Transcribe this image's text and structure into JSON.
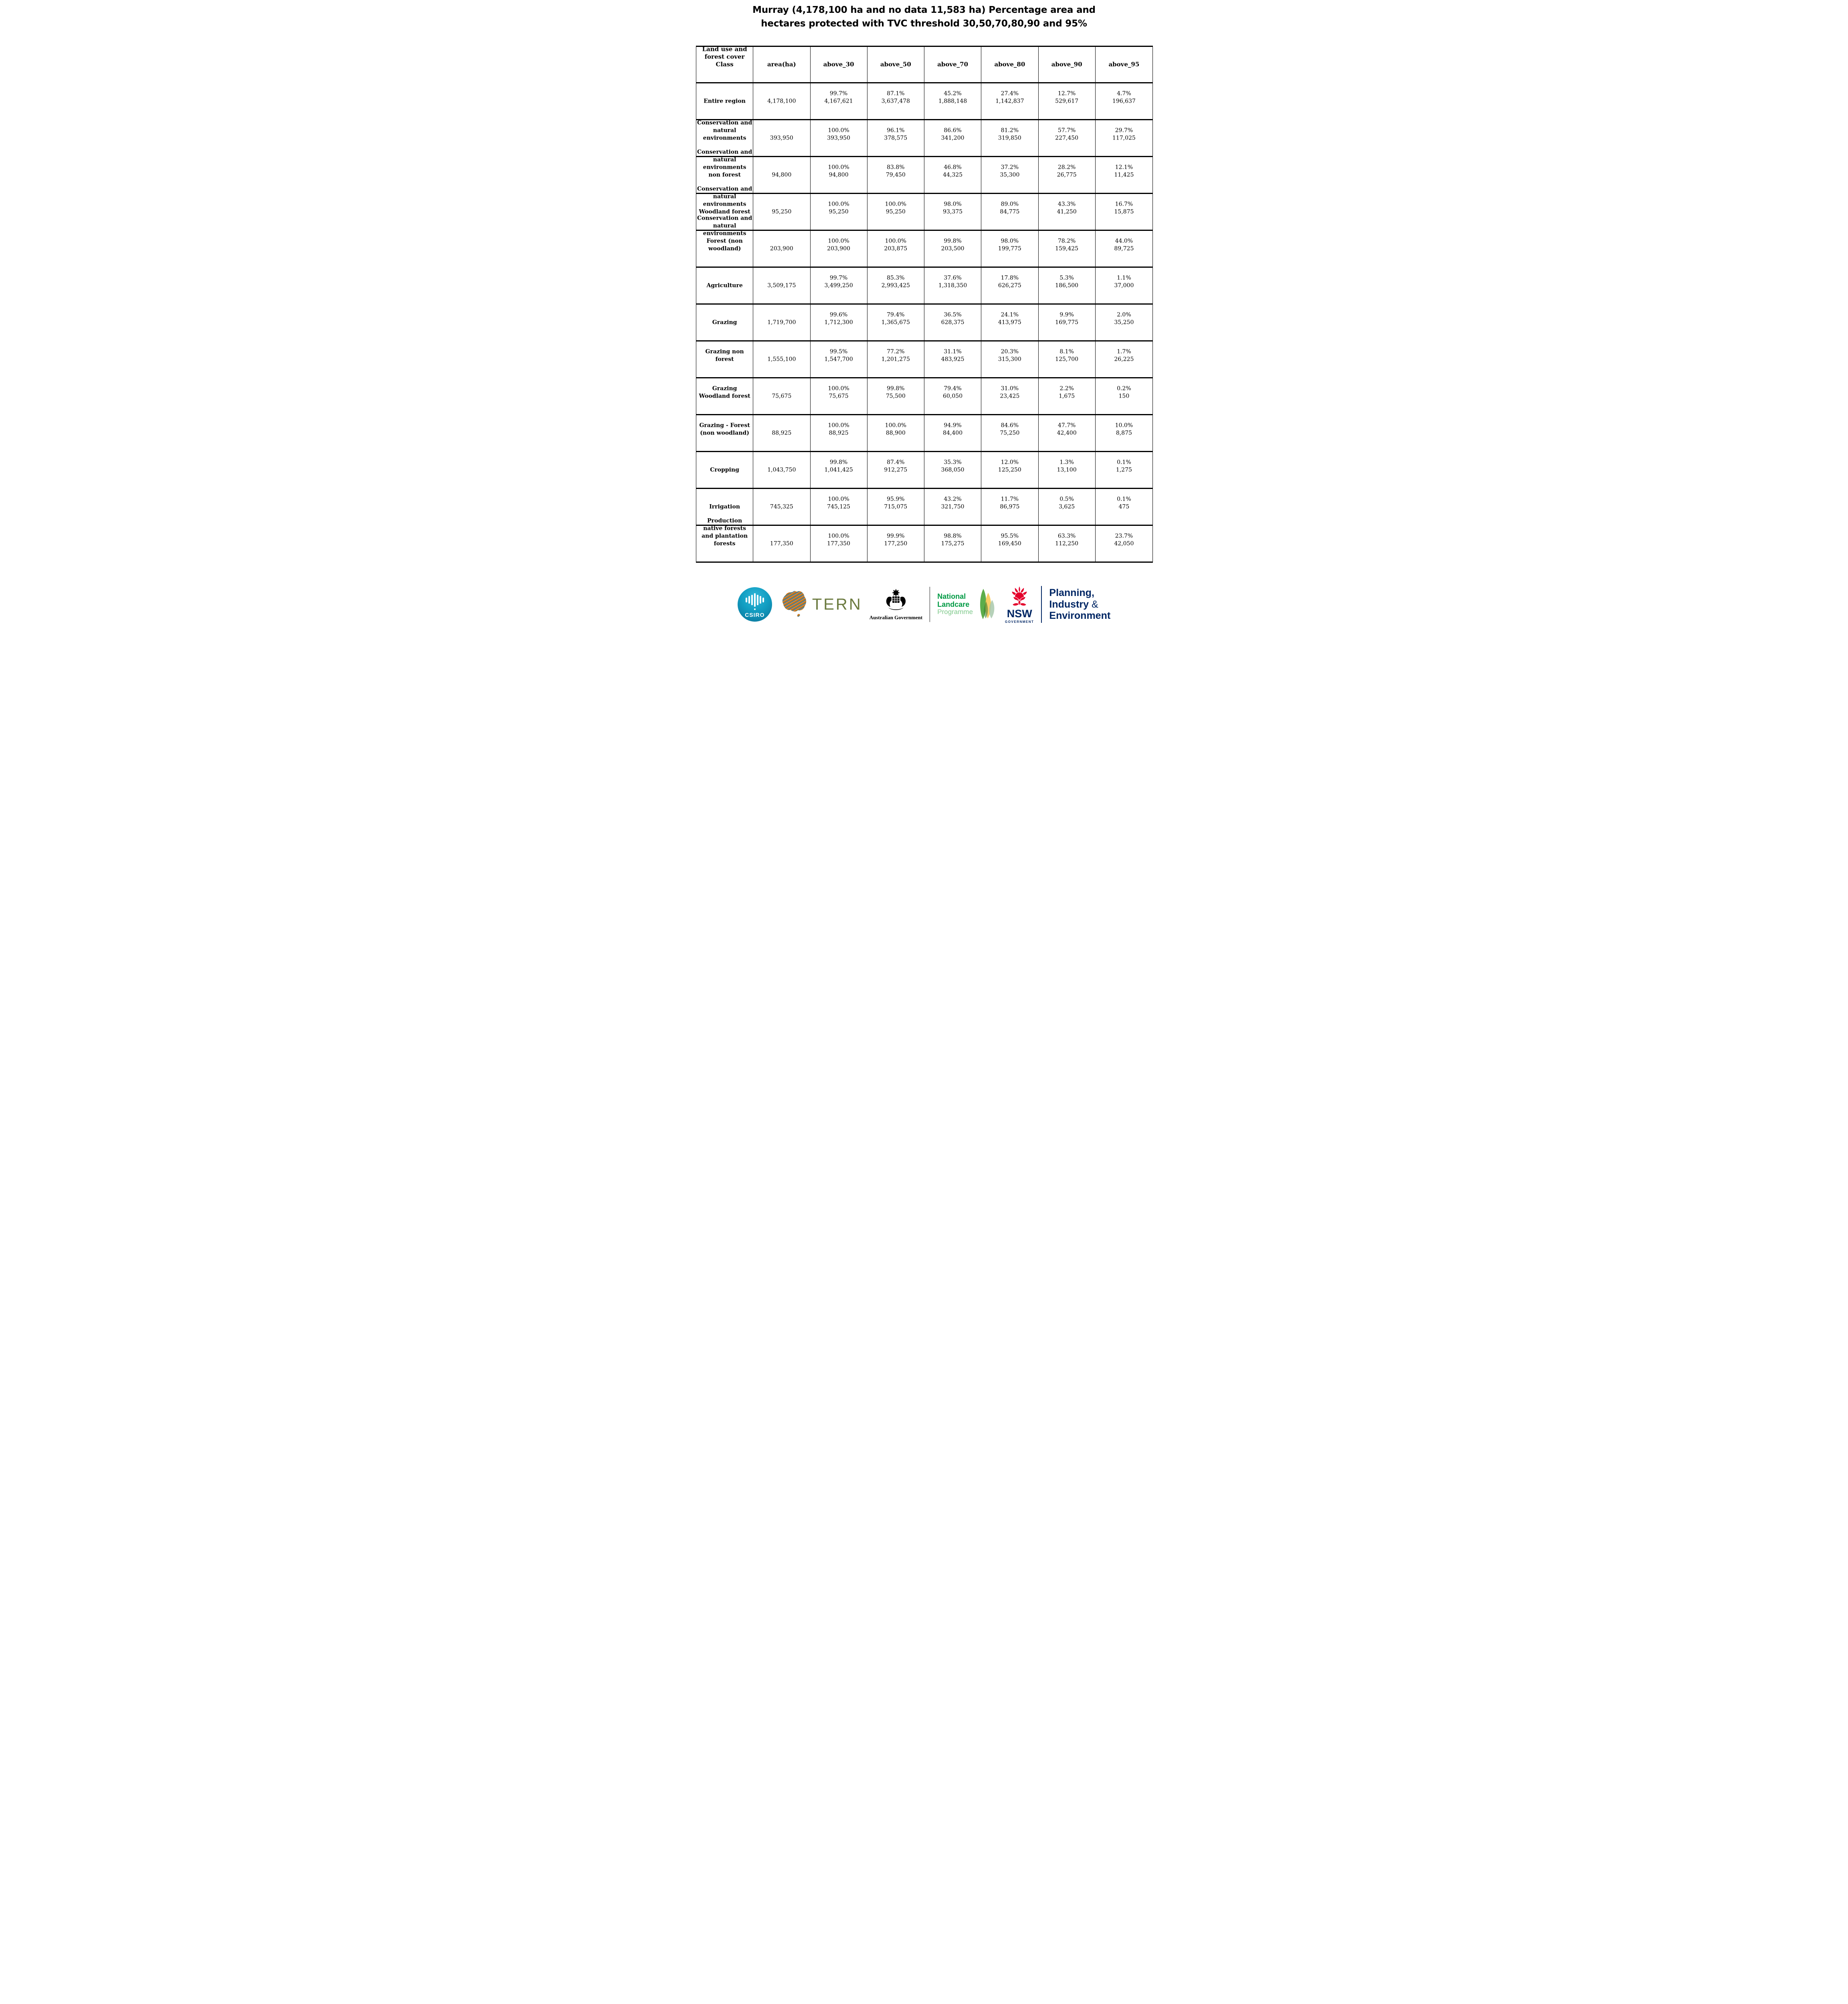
{
  "title": {
    "lines": [
      "Murray (4,178,100 ha and no data 11,583 ha) Percentage area and",
      "hectares protected with TVC threshold 30,50,70,80,90 and 95%"
    ]
  },
  "table": {
    "columns": [
      "Land use and forest cover Class",
      "area(ha)",
      "above_30",
      "above_50",
      "above_70",
      "above_80",
      "above_90",
      "above_95"
    ],
    "rows": [
      {
        "label": "Entire region",
        "area": "4,178,100",
        "cells": [
          {
            "pct": "99.7%",
            "ha": "4,167,621"
          },
          {
            "pct": "87.1%",
            "ha": "3,637,478"
          },
          {
            "pct": "45.2%",
            "ha": "1,888,148"
          },
          {
            "pct": "27.4%",
            "ha": "1,142,837"
          },
          {
            "pct": "12.7%",
            "ha": "529,617"
          },
          {
            "pct": "4.7%",
            "ha": "196,637"
          }
        ]
      },
      {
        "label": "Conservation and natural environments",
        "area": "393,950",
        "cells": [
          {
            "pct": "100.0%",
            "ha": "393,950"
          },
          {
            "pct": "96.1%",
            "ha": "378,575"
          },
          {
            "pct": "86.6%",
            "ha": "341,200"
          },
          {
            "pct": "81.2%",
            "ha": "319,850"
          },
          {
            "pct": "57.7%",
            "ha": "227,450"
          },
          {
            "pct": "29.7%",
            "ha": "117,025"
          }
        ]
      },
      {
        "label": "Conservation and natural environments non forest",
        "area": "94,800",
        "cells": [
          {
            "pct": "100.0%",
            "ha": "94,800"
          },
          {
            "pct": "83.8%",
            "ha": "79,450"
          },
          {
            "pct": "46.8%",
            "ha": "44,325"
          },
          {
            "pct": "37.2%",
            "ha": "35,300"
          },
          {
            "pct": "28.2%",
            "ha": "26,775"
          },
          {
            "pct": "12.1%",
            "ha": "11,425"
          }
        ]
      },
      {
        "label": "Conservation and natural environments Woodland forest",
        "area": "95,250",
        "cells": [
          {
            "pct": "100.0%",
            "ha": "95,250"
          },
          {
            "pct": "100.0%",
            "ha": "95,250"
          },
          {
            "pct": "98.0%",
            "ha": "93,375"
          },
          {
            "pct": "89.0%",
            "ha": "84,775"
          },
          {
            "pct": "43.3%",
            "ha": "41,250"
          },
          {
            "pct": "16.7%",
            "ha": "15,875"
          }
        ]
      },
      {
        "label": "Conservation and natural environments Forest (non woodland)",
        "area": "203,900",
        "cells": [
          {
            "pct": "100.0%",
            "ha": "203,900"
          },
          {
            "pct": "100.0%",
            "ha": "203,875"
          },
          {
            "pct": "99.8%",
            "ha": "203,500"
          },
          {
            "pct": "98.0%",
            "ha": "199,775"
          },
          {
            "pct": "78.2%",
            "ha": "159,425"
          },
          {
            "pct": "44.0%",
            "ha": "89,725"
          }
        ]
      },
      {
        "label": "Agriculture",
        "area": "3,509,175",
        "cells": [
          {
            "pct": "99.7%",
            "ha": "3,499,250"
          },
          {
            "pct": "85.3%",
            "ha": "2,993,425"
          },
          {
            "pct": "37.6%",
            "ha": "1,318,350"
          },
          {
            "pct": "17.8%",
            "ha": "626,275"
          },
          {
            "pct": "5.3%",
            "ha": "186,500"
          },
          {
            "pct": "1.1%",
            "ha": "37,000"
          }
        ]
      },
      {
        "label": "Grazing",
        "area": "1,719,700",
        "cells": [
          {
            "pct": "99.6%",
            "ha": "1,712,300"
          },
          {
            "pct": "79.4%",
            "ha": "1,365,675"
          },
          {
            "pct": "36.5%",
            "ha": "628,375"
          },
          {
            "pct": "24.1%",
            "ha": "413,975"
          },
          {
            "pct": "9.9%",
            "ha": "169,775"
          },
          {
            "pct": "2.0%",
            "ha": "35,250"
          }
        ]
      },
      {
        "label": "Grazing non forest",
        "area": "1,555,100",
        "cells": [
          {
            "pct": "99.5%",
            "ha": "1,547,700"
          },
          {
            "pct": "77.2%",
            "ha": "1,201,275"
          },
          {
            "pct": "31.1%",
            "ha": "483,925"
          },
          {
            "pct": "20.3%",
            "ha": "315,300"
          },
          {
            "pct": "8.1%",
            "ha": "125,700"
          },
          {
            "pct": "1.7%",
            "ha": "26,225"
          }
        ]
      },
      {
        "label": "Grazing Woodland forest",
        "area": "75,675",
        "cells": [
          {
            "pct": "100.0%",
            "ha": "75,675"
          },
          {
            "pct": "99.8%",
            "ha": "75,500"
          },
          {
            "pct": "79.4%",
            "ha": "60,050"
          },
          {
            "pct": "31.0%",
            "ha": "23,425"
          },
          {
            "pct": "2.2%",
            "ha": "1,675"
          },
          {
            "pct": "0.2%",
            "ha": "150"
          }
        ]
      },
      {
        "label": "Grazing - Forest (non woodland)",
        "area": "88,925",
        "cells": [
          {
            "pct": "100.0%",
            "ha": "88,925"
          },
          {
            "pct": "100.0%",
            "ha": "88,900"
          },
          {
            "pct": "94.9%",
            "ha": "84,400"
          },
          {
            "pct": "84.6%",
            "ha": "75,250"
          },
          {
            "pct": "47.7%",
            "ha": "42,400"
          },
          {
            "pct": "10.0%",
            "ha": "8,875"
          }
        ]
      },
      {
        "label": "Cropping",
        "area": "1,043,750",
        "cells": [
          {
            "pct": "99.8%",
            "ha": "1,041,425"
          },
          {
            "pct": "87.4%",
            "ha": "912,275"
          },
          {
            "pct": "35.3%",
            "ha": "368,050"
          },
          {
            "pct": "12.0%",
            "ha": "125,250"
          },
          {
            "pct": "1.3%",
            "ha": "13,100"
          },
          {
            "pct": "0.1%",
            "ha": "1,275"
          }
        ]
      },
      {
        "label": "Irrigation",
        "area": "745,325",
        "cells": [
          {
            "pct": "100.0%",
            "ha": "745,125"
          },
          {
            "pct": "95.9%",
            "ha": "715,075"
          },
          {
            "pct": "43.2%",
            "ha": "321,750"
          },
          {
            "pct": "11.7%",
            "ha": "86,975"
          },
          {
            "pct": "0.5%",
            "ha": "3,625"
          },
          {
            "pct": "0.1%",
            "ha": "475"
          }
        ]
      },
      {
        "label": "Production native forests and plantation forests",
        "area": "177,350",
        "cells": [
          {
            "pct": "100.0%",
            "ha": "177,350"
          },
          {
            "pct": "99.9%",
            "ha": "177,250"
          },
          {
            "pct": "98.8%",
            "ha": "175,275"
          },
          {
            "pct": "95.5%",
            "ha": "169,450"
          },
          {
            "pct": "63.3%",
            "ha": "112,250"
          },
          {
            "pct": "23.7%",
            "ha": "42,050"
          }
        ]
      }
    ]
  },
  "footer": {
    "csiro_label": "CSIRO",
    "tern_label": "TERN",
    "ausgov_label": "Australian Government",
    "landcare_line1": "National",
    "landcare_line2": "Landcare",
    "landcare_line3": "Programme",
    "nsw_label": "NSW",
    "nsw_sub": "GOVERNMENT",
    "dept_line1": "Planning,",
    "dept_line2_bold": "Industry",
    "dept_line2_amp": " &",
    "dept_line3": "Environment",
    "colors": {
      "csiro_teal": "#0e86ab",
      "tern_olive": "#6b7a3f",
      "landcare_green": "#009a44",
      "landcare_light_green": "#7fc98b",
      "nsw_red": "#e4002b",
      "navy": "#002664"
    }
  }
}
